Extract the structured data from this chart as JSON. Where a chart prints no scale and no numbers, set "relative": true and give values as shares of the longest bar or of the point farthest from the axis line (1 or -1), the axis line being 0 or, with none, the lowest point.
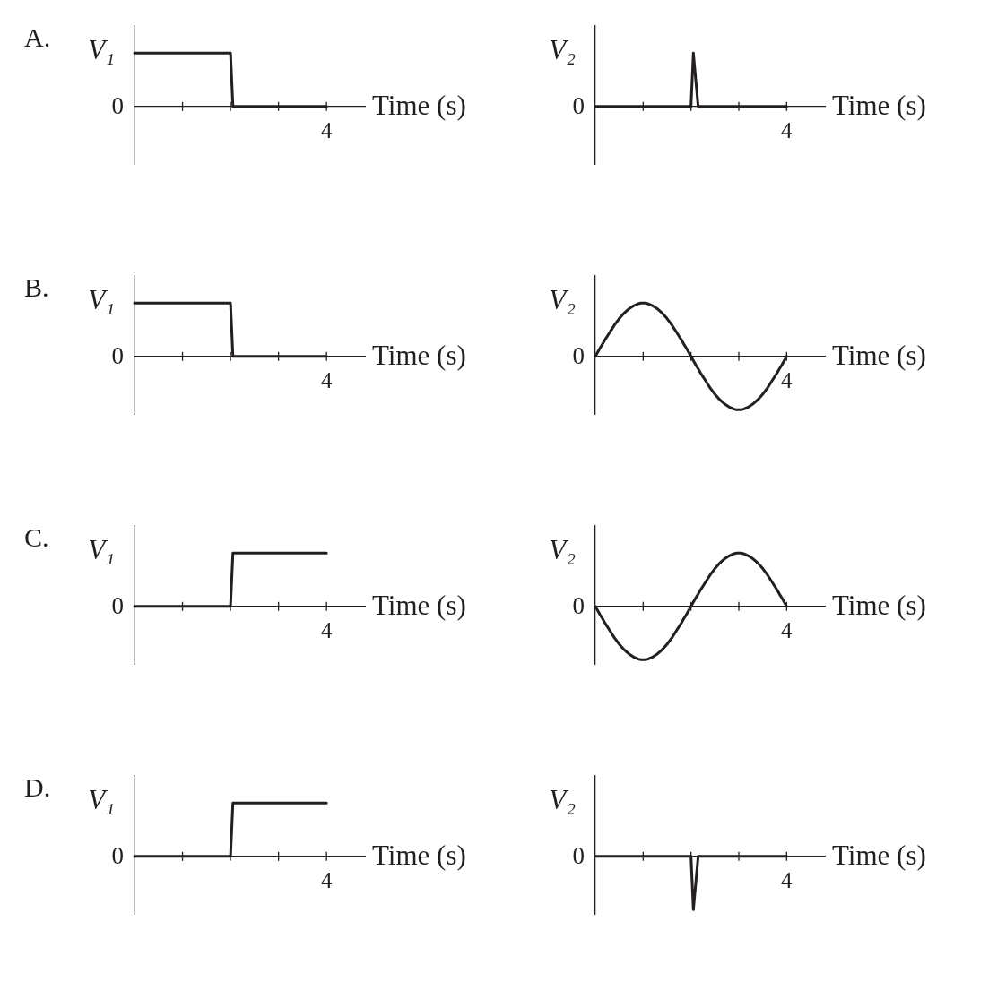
{
  "chart_data": [
    {
      "type": "line",
      "title": "A.",
      "ylabel": "V₁",
      "xlabel": "Time (s)",
      "relative": true,
      "annotations": [
        "0",
        "4"
      ],
      "color": "#231f20",
      "categories": [
        null,
        null,
        null,
        null,
        null,
        null,
        null,
        null,
        null,
        null,
        null,
        null,
        null,
        null,
        null,
        null,
        null,
        null,
        null,
        null,
        null,
        null,
        null,
        null,
        null,
        null,
        null,
        null,
        null,
        null,
        null,
        null,
        null,
        null,
        null,
        null,
        null,
        null,
        null,
        null,
        null,
        null,
        null,
        null,
        null,
        null,
        null,
        null,
        null,
        null,
        null,
        null,
        null,
        null,
        null,
        null,
        null,
        null,
        null,
        null,
        null,
        null,
        null,
        null,
        null,
        null,
        null,
        null,
        null,
        null,
        null,
        null,
        null,
        null,
        null,
        null,
        null,
        null,
        null,
        null,
        null
      ],
      "values": [
        1,
        1,
        1,
        1,
        1,
        1,
        1,
        1,
        1,
        1,
        1,
        1,
        1,
        1,
        1,
        1,
        1,
        1,
        1,
        1,
        1,
        1,
        1,
        1,
        1,
        1,
        1,
        1,
        1,
        1,
        1,
        1,
        1,
        1,
        1,
        1,
        1,
        1,
        1,
        1,
        1,
        0,
        0,
        0,
        0,
        0,
        0,
        0,
        0,
        0,
        0,
        0,
        0,
        0,
        0,
        0,
        0,
        0,
        0,
        0,
        0,
        0,
        0,
        0,
        0,
        0,
        0,
        0,
        0,
        0,
        0,
        0,
        0,
        0,
        0,
        0,
        0,
        0,
        0,
        0,
        0
      ]
    },
    {
      "type": "line",
      "ylabel": "V₂",
      "xlabel": "Time (s)",
      "relative": true,
      "annotations": [
        "0",
        "4"
      ],
      "color": "#231f20",
      "categories": [
        null,
        null,
        null,
        null,
        null,
        null,
        null,
        null,
        null,
        null,
        null,
        null,
        null,
        null,
        null,
        null,
        null,
        null,
        null,
        null,
        null,
        null,
        null,
        null,
        null,
        null,
        null,
        null,
        null,
        null,
        null,
        null,
        null,
        null,
        null,
        null,
        null,
        null,
        null,
        null,
        null,
        null,
        null,
        null,
        null,
        null,
        null,
        null,
        null,
        null,
        null,
        null,
        null,
        null,
        null,
        null,
        null,
        null,
        null,
        null,
        null,
        null,
        null,
        null,
        null,
        null,
        null,
        null,
        null,
        null,
        null,
        null,
        null,
        null,
        null,
        null,
        null,
        null,
        null,
        null,
        null
      ],
      "values": [
        0,
        0,
        0,
        0,
        0,
        0,
        0,
        0,
        0,
        0,
        0,
        0,
        0,
        0,
        0,
        0,
        0,
        0,
        0,
        0,
        0,
        0,
        0,
        0,
        0,
        0,
        0,
        0,
        0,
        0,
        0,
        0,
        0,
        0,
        0,
        0,
        0,
        0,
        0,
        0,
        0,
        1,
        0.5,
        0,
        0,
        0,
        0,
        0,
        0,
        0,
        0,
        0,
        0,
        0,
        0,
        0,
        0,
        0,
        0,
        0,
        0,
        0,
        0,
        0,
        0,
        0,
        0,
        0,
        0,
        0,
        0,
        0,
        0,
        0,
        0,
        0,
        0,
        0,
        0,
        0,
        0
      ]
    },
    {
      "type": "line",
      "title": "B.",
      "ylabel": "V₁",
      "xlabel": "Time (s)",
      "relative": true,
      "annotations": [
        "0",
        "4"
      ],
      "color": "#231f20",
      "categories": [
        null,
        null,
        null,
        null,
        null,
        null,
        null,
        null,
        null,
        null,
        null,
        null,
        null,
        null,
        null,
        null,
        null,
        null,
        null,
        null,
        null,
        null,
        null,
        null,
        null,
        null,
        null,
        null,
        null,
        null,
        null,
        null,
        null,
        null,
        null,
        null,
        null,
        null,
        null,
        null,
        null,
        null,
        null,
        null,
        null,
        null,
        null,
        null,
        null,
        null,
        null,
        null,
        null,
        null,
        null,
        null,
        null,
        null,
        null,
        null,
        null,
        null,
        null,
        null,
        null,
        null,
        null,
        null,
        null,
        null,
        null,
        null,
        null,
        null,
        null,
        null,
        null,
        null,
        null,
        null,
        null
      ],
      "values": [
        1,
        1,
        1,
        1,
        1,
        1,
        1,
        1,
        1,
        1,
        1,
        1,
        1,
        1,
        1,
        1,
        1,
        1,
        1,
        1,
        1,
        1,
        1,
        1,
        1,
        1,
        1,
        1,
        1,
        1,
        1,
        1,
        1,
        1,
        1,
        1,
        1,
        1,
        1,
        1,
        1,
        0,
        0,
        0,
        0,
        0,
        0,
        0,
        0,
        0,
        0,
        0,
        0,
        0,
        0,
        0,
        0,
        0,
        0,
        0,
        0,
        0,
        0,
        0,
        0,
        0,
        0,
        0,
        0,
        0,
        0,
        0,
        0,
        0,
        0,
        0,
        0,
        0,
        0,
        0,
        0
      ]
    },
    {
      "type": "line",
      "ylabel": "V₂",
      "xlabel": "Time (s)",
      "relative": true,
      "annotations": [
        "0",
        "4"
      ],
      "color": "#231f20",
      "categories": [
        null,
        null,
        null,
        null,
        null,
        null,
        null,
        null,
        null,
        null,
        null,
        null,
        null,
        null,
        null,
        null,
        null,
        null,
        null,
        null,
        null,
        null,
        null,
        null,
        null,
        null,
        null,
        null,
        null,
        null,
        null,
        null,
        null,
        null,
        null,
        null,
        null,
        null,
        null,
        null,
        null,
        null,
        null,
        null,
        null,
        null,
        null,
        null,
        null,
        null,
        null,
        null,
        null,
        null,
        null,
        null,
        null,
        null,
        null,
        null,
        null,
        null,
        null,
        null,
        null,
        null,
        null,
        null,
        null,
        null,
        null,
        null,
        null,
        null,
        null,
        null,
        null,
        null,
        null,
        null,
        null
      ],
      "values": [
        0,
        0.08,
        0.16,
        0.23,
        0.31,
        0.38,
        0.45,
        0.52,
        0.59,
        0.65,
        0.71,
        0.76,
        0.81,
        0.85,
        0.89,
        0.92,
        0.95,
        0.97,
        0.99,
        1,
        1,
        1,
        0.99,
        0.97,
        0.95,
        0.92,
        0.89,
        0.85,
        0.81,
        0.76,
        0.71,
        0.65,
        0.59,
        0.52,
        0.45,
        0.38,
        0.31,
        0.23,
        0.16,
        0.08,
        0,
        -0.08,
        -0.16,
        -0.23,
        -0.31,
        -0.38,
        -0.45,
        -0.52,
        -0.59,
        -0.65,
        -0.71,
        -0.76,
        -0.81,
        -0.85,
        -0.89,
        -0.92,
        -0.95,
        -0.97,
        -0.99,
        -1,
        -1,
        -1,
        -0.99,
        -0.97,
        -0.95,
        -0.92,
        -0.89,
        -0.85,
        -0.81,
        -0.76,
        -0.71,
        -0.65,
        -0.59,
        -0.52,
        -0.45,
        -0.38,
        -0.31,
        -0.23,
        -0.16,
        -0.08,
        0
      ]
    },
    {
      "type": "line",
      "title": "C.",
      "ylabel": "V₁",
      "xlabel": "Time (s)",
      "relative": true,
      "annotations": [
        "0",
        "4"
      ],
      "color": "#231f20",
      "categories": [
        null,
        null,
        null,
        null,
        null,
        null,
        null,
        null,
        null,
        null,
        null,
        null,
        null,
        null,
        null,
        null,
        null,
        null,
        null,
        null,
        null,
        null,
        null,
        null,
        null,
        null,
        null,
        null,
        null,
        null,
        null,
        null,
        null,
        null,
        null,
        null,
        null,
        null,
        null,
        null,
        null,
        null,
        null,
        null,
        null,
        null,
        null,
        null,
        null,
        null,
        null,
        null,
        null,
        null,
        null,
        null,
        null,
        null,
        null,
        null,
        null,
        null,
        null,
        null,
        null,
        null,
        null,
        null,
        null,
        null,
        null,
        null,
        null,
        null,
        null,
        null,
        null,
        null,
        null,
        null,
        null
      ],
      "values": [
        0,
        0,
        0,
        0,
        0,
        0,
        0,
        0,
        0,
        0,
        0,
        0,
        0,
        0,
        0,
        0,
        0,
        0,
        0,
        0,
        0,
        0,
        0,
        0,
        0,
        0,
        0,
        0,
        0,
        0,
        0,
        0,
        0,
        0,
        0,
        0,
        0,
        0,
        0,
        0,
        0,
        1,
        1,
        1,
        1,
        1,
        1,
        1,
        1,
        1,
        1,
        1,
        1,
        1,
        1,
        1,
        1,
        1,
        1,
        1,
        1,
        1,
        1,
        1,
        1,
        1,
        1,
        1,
        1,
        1,
        1,
        1,
        1,
        1,
        1,
        1,
        1,
        1,
        1,
        1,
        1
      ]
    },
    {
      "type": "line",
      "ylabel": "V₂",
      "xlabel": "Time (s)",
      "relative": true,
      "annotations": [
        "0",
        "4"
      ],
      "color": "#231f20",
      "categories": [
        null,
        null,
        null,
        null,
        null,
        null,
        null,
        null,
        null,
        null,
        null,
        null,
        null,
        null,
        null,
        null,
        null,
        null,
        null,
        null,
        null,
        null,
        null,
        null,
        null,
        null,
        null,
        null,
        null,
        null,
        null,
        null,
        null,
        null,
        null,
        null,
        null,
        null,
        null,
        null,
        null,
        null,
        null,
        null,
        null,
        null,
        null,
        null,
        null,
        null,
        null,
        null,
        null,
        null,
        null,
        null,
        null,
        null,
        null,
        null,
        null,
        null,
        null,
        null,
        null,
        null,
        null,
        null,
        null,
        null,
        null,
        null,
        null,
        null,
        null,
        null,
        null,
        null,
        null,
        null,
        null
      ],
      "values": [
        0,
        -0.08,
        -0.16,
        -0.23,
        -0.31,
        -0.38,
        -0.45,
        -0.52,
        -0.59,
        -0.65,
        -0.71,
        -0.76,
        -0.81,
        -0.85,
        -0.89,
        -0.92,
        -0.95,
        -0.97,
        -0.99,
        -1,
        -1,
        -1,
        -0.99,
        -0.97,
        -0.95,
        -0.92,
        -0.89,
        -0.85,
        -0.81,
        -0.76,
        -0.71,
        -0.65,
        -0.59,
        -0.52,
        -0.45,
        -0.38,
        -0.31,
        -0.23,
        -0.16,
        -0.08,
        0,
        0.08,
        0.16,
        0.23,
        0.31,
        0.38,
        0.45,
        0.52,
        0.59,
        0.65,
        0.71,
        0.76,
        0.81,
        0.85,
        0.89,
        0.92,
        0.95,
        0.97,
        0.99,
        1,
        1,
        1,
        0.99,
        0.97,
        0.95,
        0.92,
        0.89,
        0.85,
        0.81,
        0.76,
        0.71,
        0.65,
        0.59,
        0.52,
        0.45,
        0.38,
        0.31,
        0.23,
        0.16,
        0.08,
        0
      ]
    },
    {
      "type": "line",
      "title": "D.",
      "ylabel": "V₁",
      "xlabel": "Time (s)",
      "relative": true,
      "annotations": [
        "0",
        "4"
      ],
      "color": "#231f20",
      "categories": [
        null,
        null,
        null,
        null,
        null,
        null,
        null,
        null,
        null,
        null,
        null,
        null,
        null,
        null,
        null,
        null,
        null,
        null,
        null,
        null,
        null,
        null,
        null,
        null,
        null,
        null,
        null,
        null,
        null,
        null,
        null,
        null,
        null,
        null,
        null,
        null,
        null,
        null,
        null,
        null,
        null,
        null,
        null,
        null,
        null,
        null,
        null,
        null,
        null,
        null,
        null,
        null,
        null,
        null,
        null,
        null,
        null,
        null,
        null,
        null,
        null,
        null,
        null,
        null,
        null,
        null,
        null,
        null,
        null,
        null,
        null,
        null,
        null,
        null,
        null,
        null,
        null,
        null,
        null,
        null,
        null
      ],
      "values": [
        0,
        0,
        0,
        0,
        0,
        0,
        0,
        0,
        0,
        0,
        0,
        0,
        0,
        0,
        0,
        0,
        0,
        0,
        0,
        0,
        0,
        0,
        0,
        0,
        0,
        0,
        0,
        0,
        0,
        0,
        0,
        0,
        0,
        0,
        0,
        0,
        0,
        0,
        0,
        0,
        0,
        1,
        1,
        1,
        1,
        1,
        1,
        1,
        1,
        1,
        1,
        1,
        1,
        1,
        1,
        1,
        1,
        1,
        1,
        1,
        1,
        1,
        1,
        1,
        1,
        1,
        1,
        1,
        1,
        1,
        1,
        1,
        1,
        1,
        1,
        1,
        1,
        1,
        1,
        1,
        1
      ]
    },
    {
      "type": "line",
      "ylabel": "V₂",
      "xlabel": "Time (s)",
      "relative": true,
      "annotations": [
        "0",
        "4"
      ],
      "color": "#231f20",
      "categories": [
        null,
        null,
        null,
        null,
        null,
        null,
        null,
        null,
        null,
        null,
        null,
        null,
        null,
        null,
        null,
        null,
        null,
        null,
        null,
        null,
        null,
        null,
        null,
        null,
        null,
        null,
        null,
        null,
        null,
        null,
        null,
        null,
        null,
        null,
        null,
        null,
        null,
        null,
        null,
        null,
        null,
        null,
        null,
        null,
        null,
        null,
        null,
        null,
        null,
        null,
        null,
        null,
        null,
        null,
        null,
        null,
        null,
        null,
        null,
        null,
        null,
        null,
        null,
        null,
        null,
        null,
        null,
        null,
        null,
        null,
        null,
        null,
        null,
        null,
        null,
        null,
        null,
        null,
        null,
        null,
        null
      ],
      "values": [
        0,
        0,
        0,
        0,
        0,
        0,
        0,
        0,
        0,
        0,
        0,
        0,
        0,
        0,
        0,
        0,
        0,
        0,
        0,
        0,
        0,
        0,
        0,
        0,
        0,
        0,
        0,
        0,
        0,
        0,
        0,
        0,
        0,
        0,
        0,
        0,
        0,
        0,
        0,
        0,
        0,
        -1,
        -0.5,
        0,
        0,
        0,
        0,
        0,
        0,
        0,
        0,
        0,
        0,
        0,
        0,
        0,
        0,
        0,
        0,
        0,
        0,
        0,
        0,
        0,
        0,
        0,
        0,
        0,
        0,
        0,
        0,
        0,
        0,
        0,
        0,
        0,
        0,
        0,
        0,
        0,
        0
      ]
    }
  ]
}
